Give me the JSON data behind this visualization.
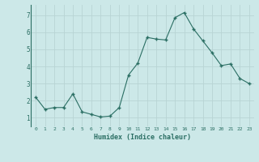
{
  "x": [
    0,
    1,
    2,
    3,
    4,
    5,
    6,
    7,
    8,
    9,
    10,
    11,
    12,
    13,
    14,
    15,
    16,
    17,
    18,
    19,
    20,
    21,
    22,
    23
  ],
  "y": [
    2.2,
    1.5,
    1.6,
    1.6,
    2.4,
    1.35,
    1.2,
    1.05,
    1.1,
    1.6,
    3.5,
    4.2,
    5.7,
    5.6,
    5.55,
    6.85,
    7.15,
    6.2,
    5.5,
    4.8,
    4.05,
    4.15,
    3.3,
    3.0
  ],
  "xlabel": "Humidex (Indice chaleur)",
  "bg_color": "#cce8e8",
  "line_color": "#2a6e63",
  "grid_color": "#b8d4d4",
  "ylim": [
    0.5,
    7.6
  ],
  "xlim": [
    -0.5,
    23.5
  ],
  "yticks": [
    1,
    2,
    3,
    4,
    5,
    6,
    7
  ],
  "xticks": [
    0,
    1,
    2,
    3,
    4,
    5,
    6,
    7,
    8,
    9,
    10,
    11,
    12,
    13,
    14,
    15,
    16,
    17,
    18,
    19,
    20,
    21,
    22,
    23
  ]
}
